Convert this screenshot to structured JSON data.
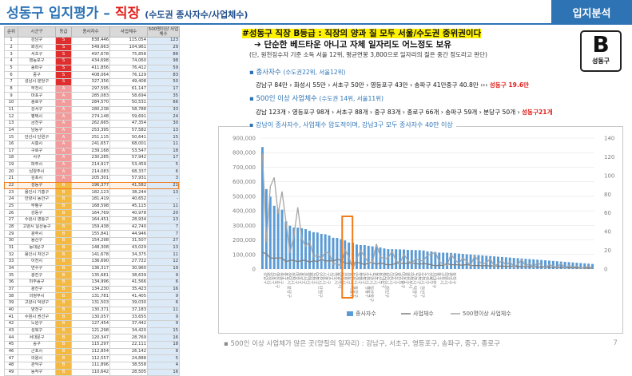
{
  "header": {
    "title_main": "성동구 입지평가",
    "title_dash": "–",
    "title_accent": "직장",
    "subtitle": "(수도권 종사자수/사업체수)",
    "tag": "입지분석",
    "page_number": "7"
  },
  "table": {
    "columns": [
      "순위",
      "시군구",
      "등급",
      "종사자수",
      "사업체수",
      "500명이상 사업체수"
    ],
    "highlight_rank": 22,
    "rows": [
      [
        "1",
        "강남구",
        "S",
        "838,446",
        "115,054",
        "123"
      ],
      [
        "2",
        "화성시",
        "S",
        "549,663",
        "104,961",
        "29"
      ],
      [
        "3",
        "서초구",
        "S",
        "497,678",
        "75,858",
        "88"
      ],
      [
        "4",
        "영등포구",
        "S",
        "434,698",
        "74,060",
        "98"
      ],
      [
        "5",
        "송파구",
        "S",
        "411,856",
        "76,412",
        "59"
      ],
      [
        "6",
        "중구",
        "S",
        "408,064",
        "76,129",
        "83"
      ],
      [
        "7",
        "성남시 분당구",
        "S",
        "327,356",
        "49,408",
        "50"
      ],
      [
        "8",
        "부천시",
        "A",
        "297,595",
        "61,147",
        "17"
      ],
      [
        "9",
        "마포구",
        "A",
        "285,083",
        "58,694",
        "35"
      ],
      [
        "10",
        "종로구",
        "A",
        "284,570",
        "50,531",
        "66"
      ],
      [
        "11",
        "강서구",
        "A",
        "280,238",
        "58,788",
        "33"
      ],
      [
        "12",
        "평택시",
        "A",
        "274,148",
        "59,691",
        "24"
      ],
      [
        "13",
        "금천구",
        "A",
        "262,665",
        "47,354",
        "30"
      ],
      [
        "14",
        "남동구",
        "A",
        "253,395",
        "57,582",
        "13"
      ],
      [
        "15",
        "안산시 단원구",
        "A",
        "251,115",
        "50,641",
        "15"
      ],
      [
        "16",
        "시흥시",
        "A",
        "241,657",
        "68,001",
        "11"
      ],
      [
        "17",
        "구로구",
        "A",
        "239,168",
        "53,547",
        "18"
      ],
      [
        "18",
        "서구",
        "A",
        "230,285",
        "57,942",
        "17"
      ],
      [
        "19",
        "파주시",
        "A",
        "214,917",
        "53,459",
        "5"
      ],
      [
        "20",
        "남양주시",
        "A",
        "214,083",
        "68,337",
        "6"
      ],
      [
        "21",
        "김포시",
        "A",
        "205,301",
        "57,931",
        "3"
      ],
      [
        "22",
        "성동구",
        "B",
        "196,377",
        "41,582",
        "21"
      ],
      [
        "23",
        "용인시 기흥구",
        "B",
        "182,123",
        "38,244",
        "13"
      ],
      [
        "24",
        "안양시 동안구",
        "B",
        "181,419",
        "40,652",
        "-"
      ],
      [
        "25",
        "부평구",
        "B",
        "168,598",
        "45,115",
        "11"
      ],
      [
        "26",
        "강동구",
        "B",
        "164,769",
        "40,978",
        "20"
      ],
      [
        "27",
        "수원시 영통구",
        "B",
        "164,451",
        "28,934",
        "13"
      ],
      [
        "28",
        "고양시 일산동구",
        "B",
        "159,438",
        "42,740",
        "7"
      ],
      [
        "29",
        "광주시",
        "B",
        "155,841",
        "44,946",
        "7"
      ],
      [
        "30",
        "용산구",
        "B",
        "154,298",
        "31,507",
        "27"
      ],
      [
        "31",
        "동대문구",
        "B",
        "148,308",
        "43,029",
        "13"
      ],
      [
        "32",
        "용인시 처인구",
        "B",
        "141,678",
        "34,375",
        "11"
      ],
      [
        "33",
        "이천시",
        "B",
        "136,690",
        "27,722",
        "12"
      ],
      [
        "34",
        "연수구",
        "B",
        "136,317",
        "30,960",
        "19"
      ],
      [
        "35",
        "광진구",
        "B",
        "135,681",
        "38,639",
        "9"
      ],
      [
        "36",
        "미추홀구",
        "B",
        "134,996",
        "41,566",
        "6"
      ],
      [
        "37",
        "광진구",
        "B",
        "134,230",
        "35,423",
        "16"
      ],
      [
        "38",
        "의정부시",
        "B",
        "131,781",
        "41,405",
        "9"
      ],
      [
        "39",
        "고양시 덕양구",
        "B",
        "131,503",
        "39,030",
        "6"
      ],
      [
        "40",
        "양천구",
        "B",
        "130,371",
        "37,183",
        "11"
      ],
      [
        "41",
        "수원시 권선구",
        "B",
        "130,057",
        "33,655",
        "9"
      ],
      [
        "42",
        "노원구",
        "B",
        "127,454",
        "37,442",
        "9"
      ],
      [
        "43",
        "성북구",
        "B",
        "121,298",
        "34,420",
        "15"
      ],
      [
        "44",
        "서대문구",
        "B",
        "120,347",
        "28,769",
        "16"
      ],
      [
        "45",
        "중구",
        "B",
        "115,297",
        "22,111",
        "18"
      ],
      [
        "46",
        "군포시",
        "B",
        "112,854",
        "26,142",
        "8"
      ],
      [
        "47",
        "의왕시",
        "B",
        "112,557",
        "24,888",
        "5"
      ],
      [
        "48",
        "관악구",
        "B",
        "111,896",
        "38,558",
        "4"
      ],
      [
        "49",
        "동작구",
        "B",
        "110,642",
        "28,505",
        "16"
      ]
    ]
  },
  "summary": {
    "headline": "#성동구 직장 B등급 : 직장의 양과 질 모두 서울/수도권 중위권이다",
    "arrow_line": "➔ 단순한 베드타운 아니고 자체 일자리도 어느정도 보유",
    "note": "(단, 원천징수자 기준 소득 서울 12위, 평균연봉 3,800으로 일자리의 질은 중간 정도라고 판단)",
    "badge_grade": "B",
    "badge_name": "성동구",
    "bullet1_main": "종사자수",
    "bullet1_sub": "(수도권22위, 서울12위)",
    "detail1": "강남구 84만 › 화성시 55만 › 서초구 50만 › 영등포구 43만 › 송파구 41만중구 40.8만 ››› ",
    "detail1_red": "성동구 19.6만",
    "bullet2_main": "500인 이상 사업체수",
    "bullet2_sub": "(수도권 14위, 서울11위)",
    "detail2": "강남 123개 › 영등포구 98개 › 서초구 88개 › 중구 83개 › 종로구 66개 › 송파구 59개 › 분당구 50개 › ",
    "detail2_red": "성동구21개",
    "bullet3": "강남이 종사자수, 사업체수 압도적이며, 강남3구 모두 종사자수 40만 이상",
    "footer": "500인 이상 사업체가 많은 곳(양질의 일자리) : 강남구, 서초구, 영등포구, 송파구, 중구, 종로구"
  },
  "colors": {
    "accent_blue": "#2e74b5",
    "accent_red": "#e0201b",
    "bar_blue": "#5b9bd5",
    "line_gray": "#a6a6a6",
    "line_gray2": "#7f7f7f",
    "highlight_orange": "#f07b1c"
  },
  "chart_data": {
    "type": "bar",
    "title": "",
    "ylim": [
      0,
      900000
    ],
    "y2lim": [
      0,
      140
    ],
    "yticks": [
      "0",
      "100,000",
      "200,000",
      "300,000",
      "400,000",
      "500,000",
      "600,000",
      "700,000",
      "800,000",
      "900,000"
    ],
    "y2ticks": [
      "0",
      "20",
      "40",
      "60",
      "80",
      "100",
      "120",
      "140"
    ],
    "grid": true,
    "legend_placement": "bottom",
    "legend": [
      "종사자수",
      "사업체수",
      "500명이상 사업체수"
    ],
    "highlight_index": 21,
    "series": [
      {
        "name": "종사자수",
        "type": "bar",
        "axis": "left",
        "values": [
          838446,
          549663,
          497678,
          434698,
          411856,
          408064,
          327356,
          297595,
          285083,
          284570,
          280238,
          274148,
          262665,
          253395,
          251115,
          241657,
          239168,
          230285,
          214917,
          214083,
          205301,
          196377,
          182123,
          181419,
          168598,
          164769,
          164451,
          159438,
          155841,
          154298,
          148308,
          141678,
          136690,
          136317,
          135681,
          134996,
          134230,
          131781,
          131503,
          130371,
          130057,
          127454,
          121298,
          120347,
          115297,
          112854,
          112557,
          111896,
          110642,
          108500,
          106300,
          104100,
          102000,
          99800,
          97600,
          95500,
          93300,
          91200,
          89100,
          87000,
          84900,
          82800,
          80700,
          78700,
          76600,
          74500,
          72500,
          70400,
          68300,
          66300,
          64200,
          62100,
          60000,
          57900,
          55800,
          53700,
          51600,
          49500,
          47400,
          45300,
          43200,
          41100,
          39000,
          36900,
          34800
        ]
      },
      {
        "name": "사업체수",
        "type": "line",
        "axis": "left",
        "values": [
          115054,
          104961,
          75858,
          74060,
          76412,
          76129,
          49408,
          61147,
          58694,
          50531,
          58788,
          59691,
          47354,
          57582,
          50641,
          68001,
          53547,
          57942,
          53459,
          68337,
          57931,
          41582,
          38244,
          40652,
          45115,
          40978,
          28934,
          42740,
          44946,
          31507,
          43029,
          34375,
          27722,
          30960,
          38639,
          41566,
          35423,
          41405,
          39030,
          37183,
          33655,
          37442,
          34420,
          28769,
          22111,
          26142,
          24888,
          38558,
          28505,
          30100,
          27800,
          26500,
          31200,
          25400,
          22900,
          24700,
          21800,
          23500,
          20600,
          22200,
          19400,
          20900,
          18100,
          19600,
          16900,
          18300,
          15700,
          17000,
          14400,
          15700,
          13200,
          14500,
          12000,
          13200,
          10800,
          11900,
          9600,
          10700,
          8400,
          9500,
          7300,
          8300,
          6200,
          7100,
          5100
        ]
      },
      {
        "name": "500명이상 사업체수",
        "type": "line",
        "axis": "right",
        "values": [
          123,
          29,
          88,
          98,
          59,
          83,
          50,
          17,
          35,
          66,
          33,
          24,
          30,
          13,
          15,
          11,
          18,
          17,
          5,
          6,
          3,
          21,
          13,
          0,
          11,
          20,
          13,
          7,
          7,
          27,
          13,
          11,
          12,
          19,
          9,
          6,
          16,
          9,
          6,
          11,
          9,
          9,
          15,
          16,
          18,
          8,
          5,
          4,
          16,
          10,
          6,
          12,
          8,
          4,
          14,
          9,
          5,
          7,
          11,
          3,
          6,
          9,
          4,
          8,
          2,
          5,
          10,
          3,
          6,
          2,
          7,
          4,
          1,
          5,
          3,
          2,
          6,
          1,
          4,
          2,
          3,
          1,
          2,
          3,
          1
        ]
      }
    ]
  }
}
